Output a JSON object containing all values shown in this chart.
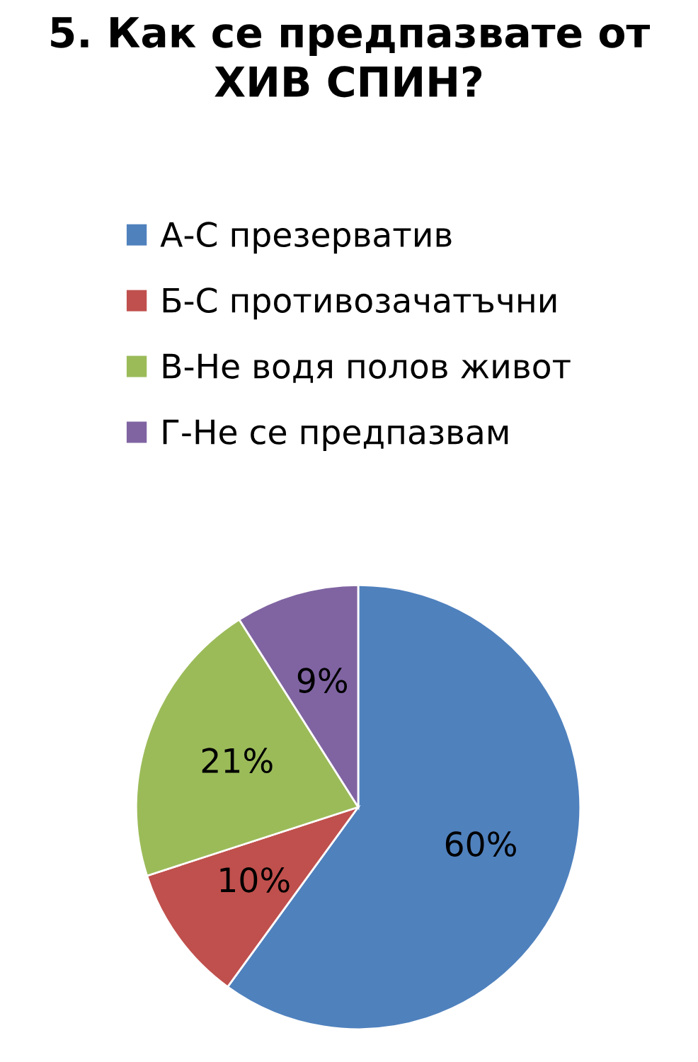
{
  "chart_data": {
    "type": "pie",
    "title": "5. Как се предпазвате от\nХИВ СПИН?",
    "categories": [
      "А-С презерватив",
      "Б-С противозачатъчни",
      "В-Не водя полов живот",
      "Г-Не се предпазвам"
    ],
    "values": [
      60,
      10,
      21,
      9
    ],
    "colors": [
      "#4f81bd",
      "#c0504d",
      "#9bbb59",
      "#8064a2"
    ],
    "value_labels": [
      "60%",
      "10%",
      "21%",
      "9%"
    ],
    "legend": "top"
  }
}
